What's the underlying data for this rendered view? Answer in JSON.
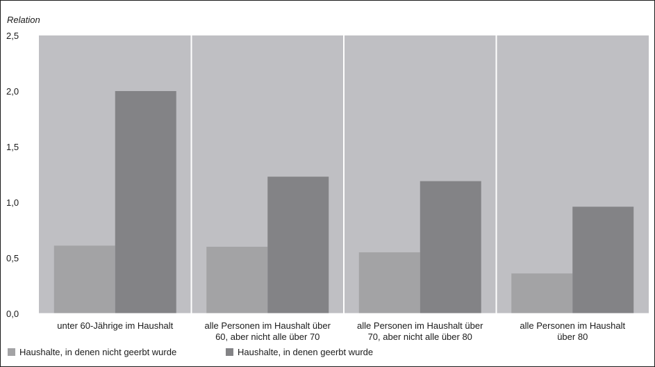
{
  "chart_data": {
    "type": "bar",
    "ylabel": "Relation",
    "ylim": [
      0,
      2.5
    ],
    "yticks": [
      "0,0",
      "0,5",
      "1,0",
      "1,5",
      "2,0",
      "2,5"
    ],
    "ytick_values": [
      0,
      0.5,
      1.0,
      1.5,
      2.0,
      2.5
    ],
    "categories": [
      [
        "unter 60-Jährige im Haushalt"
      ],
      [
        "alle Personen im Haushalt über",
        "60, aber nicht alle über 70"
      ],
      [
        "alle Personen im Haushalt über",
        "70, aber nicht alle über 80"
      ],
      [
        "alle Personen im Haushalt",
        "über 80"
      ]
    ],
    "series": [
      {
        "name": "Haushalte, in denen nicht geerbt wurde",
        "values": [
          0.61,
          0.6,
          0.55,
          0.36
        ],
        "color": "#a3a3a5"
      },
      {
        "name": "Haushalte, in denen geerbt wurde",
        "values": [
          2.0,
          1.23,
          1.19,
          0.96
        ],
        "color": "#838386"
      }
    ],
    "plot_background": "#bfbfc3",
    "grid": "vertical separators between categories (white)",
    "legend_position": "bottom-left"
  }
}
